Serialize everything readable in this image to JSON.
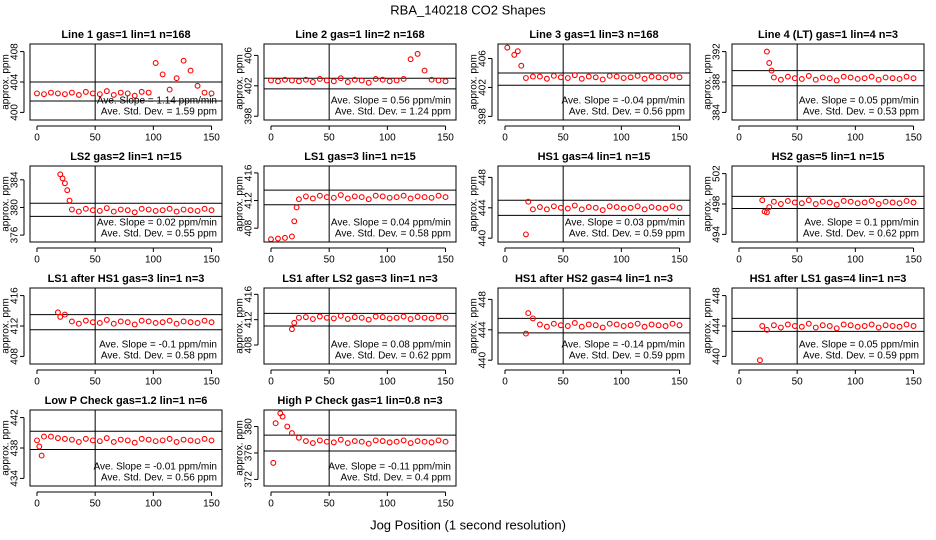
{
  "title": "RBA_140218  CO2 Shapes",
  "x_label": "Jog Position (1 second resolution)",
  "chart_data": [
    {
      "type": "scatter",
      "title": "Line 1 gas=1 lin=1 n=168",
      "y_label": "approx. ppm",
      "color": "#ff0000",
      "annotations": [
        "Ave. Slope = 1.14 ppm/min",
        "Ave. Std. Dev. = 1.59 ppm"
      ],
      "xlim": [
        -6,
        159
      ],
      "xticks": [
        0,
        50,
        100,
        150
      ],
      "ylim": [
        399,
        409
      ],
      "yticks": [
        400,
        404,
        408
      ],
      "vlines": [
        50
      ],
      "hlines": [
        404,
        401.5
      ],
      "x": [
        0,
        6,
        12,
        18,
        24,
        30,
        36,
        42,
        48,
        54,
        60,
        66,
        72,
        78,
        84,
        90,
        96,
        102,
        108,
        114,
        120,
        126,
        132,
        138,
        144,
        150
      ],
      "values": [
        402.5,
        402.4,
        402.6,
        402.5,
        402.4,
        402.6,
        402.3,
        402.7,
        402.5,
        402.4,
        402.8,
        402.3,
        402.6,
        402.5,
        402.2,
        402.7,
        402.6,
        406.5,
        405,
        403,
        404.5,
        406.8,
        405.5,
        403.5,
        402.6,
        402.5
      ]
    },
    {
      "type": "scatter",
      "title": "Line 2 gas=1 lin=2 n=168",
      "y_label": "approx. ppm",
      "color": "#ff0000",
      "annotations": [
        "Ave. Slope = 0.56 ppm/min",
        "Ave. Std. Dev. = 1.24 ppm"
      ],
      "xlim": [
        -6,
        159
      ],
      "xticks": [
        0,
        50,
        100,
        150
      ],
      "ylim": [
        397.5,
        407.5
      ],
      "yticks": [
        398,
        402,
        406
      ],
      "vlines": [
        50
      ],
      "hlines": [
        403,
        401.6
      ],
      "x": [
        0,
        6,
        12,
        18,
        24,
        30,
        36,
        42,
        48,
        54,
        60,
        66,
        72,
        78,
        84,
        90,
        96,
        102,
        108,
        114,
        120,
        126,
        132,
        138,
        144,
        150
      ],
      "values": [
        402.7,
        402.6,
        402.8,
        402.7,
        402.6,
        402.8,
        402.5,
        402.9,
        402.7,
        402.6,
        403,
        402.5,
        402.8,
        402.7,
        402.4,
        402.9,
        402.8,
        402.6,
        402.7,
        402.9,
        405.5,
        406.2,
        404,
        402.8,
        402.7,
        402.6
      ]
    },
    {
      "type": "scatter",
      "title": "Line 3 gas=1 lin=3 n=168",
      "y_label": "approx. ppm",
      "color": "#ff0000",
      "annotations": [
        "Ave. Slope = -0.04 ppm/min",
        "Ave. Std. Dev. = 0.56 ppm"
      ],
      "xlim": [
        -6,
        159
      ],
      "xticks": [
        0,
        50,
        100,
        150
      ],
      "ylim": [
        397.5,
        408
      ],
      "yticks": [
        398,
        402,
        406
      ],
      "vlines": [
        50
      ],
      "hlines": [
        404,
        402.3
      ],
      "x": [
        2,
        8,
        11,
        14,
        18,
        24,
        30,
        36,
        42,
        48,
        54,
        60,
        66,
        72,
        78,
        84,
        90,
        96,
        102,
        108,
        114,
        120,
        126,
        132,
        138,
        144,
        150
      ],
      "values": [
        407.5,
        406.5,
        407,
        405,
        403.3,
        403.5,
        403.5,
        403.2,
        403.6,
        403.4,
        403.3,
        403.7,
        403.2,
        403.5,
        403.4,
        403.1,
        403.6,
        403.5,
        403.3,
        403.4,
        403.6,
        403.2,
        403.5,
        403.4,
        403.3,
        403.6,
        403.4
      ]
    },
    {
      "type": "scatter",
      "title": "Line 4 (LT) gas=1 lin=4 n=3",
      "y_label": "approx. ppm",
      "color": "#ff0000",
      "annotations": [
        "Ave. Slope = 0.05 ppm/min",
        "Ave. Std. Dev. = 0.53 ppm"
      ],
      "xlim": [
        -6,
        159
      ],
      "xticks": [
        0,
        50,
        100,
        150
      ],
      "ylim": [
        383,
        393
      ],
      "yticks": [
        384,
        388,
        392
      ],
      "vlines": [
        50
      ],
      "hlines": [
        389.5,
        387.5
      ],
      "x": [
        24,
        26,
        28,
        30,
        36,
        42,
        48,
        54,
        60,
        66,
        72,
        78,
        84,
        90,
        96,
        102,
        108,
        114,
        120,
        126,
        132,
        138,
        144,
        150
      ],
      "values": [
        392,
        390.5,
        389.5,
        388.6,
        388.3,
        388.7,
        388.5,
        388.4,
        388.8,
        388.3,
        388.6,
        388.5,
        388.2,
        388.7,
        388.6,
        388.4,
        388.5,
        388.7,
        388.3,
        388.6,
        388.5,
        388.4,
        388.7,
        388.5
      ]
    },
    {
      "type": "scatter",
      "title": "LS2 gas=2 lin=1 n=15",
      "y_label": "approx. ppm",
      "color": "#ff0000",
      "annotations": [
        "Ave. Slope = 0.02 ppm/min",
        "Ave. Std. Dev. = 0.55 ppm"
      ],
      "xlim": [
        -6,
        159
      ],
      "xticks": [
        0,
        50,
        100,
        150
      ],
      "ylim": [
        375,
        386
      ],
      "yticks": [
        376,
        380,
        384
      ],
      "vlines": [
        50
      ],
      "hlines": [
        380.6,
        378.7
      ],
      "x": [
        20,
        22,
        24,
        26,
        28,
        30,
        36,
        42,
        48,
        54,
        60,
        66,
        72,
        78,
        84,
        90,
        96,
        102,
        108,
        114,
        120,
        126,
        132,
        138,
        144,
        150
      ],
      "values": [
        384.8,
        384.2,
        383.5,
        382.5,
        381,
        379.7,
        379.4,
        379.8,
        379.6,
        379.5,
        379.9,
        379.4,
        379.7,
        379.6,
        379.3,
        379.8,
        379.7,
        379.5,
        379.6,
        379.8,
        379.4,
        379.7,
        379.6,
        379.5,
        379.8,
        379.6
      ]
    },
    {
      "type": "scatter",
      "title": "LS1 gas=3 lin=1 n=15",
      "y_label": "approx. ppm",
      "color": "#ff0000",
      "annotations": [
        "Ave. Slope = 0.04 ppm/min",
        "Ave. Std. Dev. = 0.58 ppm"
      ],
      "xlim": [
        -6,
        159
      ],
      "xticks": [
        0,
        50,
        100,
        150
      ],
      "ylim": [
        406,
        417
      ],
      "yticks": [
        408,
        412,
        416
      ],
      "vlines": [
        50
      ],
      "hlines": [
        413.5,
        411.4
      ],
      "x": [
        0,
        6,
        12,
        18,
        20,
        22,
        24,
        30,
        36,
        42,
        48,
        54,
        60,
        66,
        72,
        78,
        84,
        90,
        96,
        102,
        108,
        114,
        120,
        126,
        132,
        138,
        144,
        150
      ],
      "values": [
        406.4,
        406.5,
        406.6,
        406.8,
        409,
        411,
        412.2,
        412.6,
        412.3,
        412.7,
        412.5,
        412.4,
        412.8,
        412.3,
        412.6,
        412.5,
        412.2,
        412.7,
        412.6,
        412.4,
        412.5,
        412.7,
        412.3,
        412.6,
        412.5,
        412.4,
        412.7,
        412.5
      ]
    },
    {
      "type": "scatter",
      "title": "HS1 gas=4 lin=1 n=15",
      "y_label": "approx. ppm",
      "color": "#ff0000",
      "annotations": [
        "Ave. Slope = 0.03 ppm/min",
        "Ave. Std. Dev. = 0.59 ppm"
      ],
      "xlim": [
        -6,
        159
      ],
      "xticks": [
        0,
        50,
        100,
        150
      ],
      "ylim": [
        439.5,
        449.5
      ],
      "yticks": [
        440,
        444,
        448
      ],
      "vlines": [
        50
      ],
      "hlines": [
        445,
        443
      ],
      "x": [
        18,
        20,
        24,
        30,
        36,
        42,
        48,
        54,
        60,
        66,
        72,
        78,
        84,
        90,
        96,
        102,
        108,
        114,
        120,
        126,
        132,
        138,
        144,
        150
      ],
      "values": [
        440.5,
        444.8,
        443.8,
        444.1,
        443.8,
        444.2,
        444,
        443.9,
        444.3,
        443.8,
        444.1,
        444,
        443.7,
        444.2,
        444.1,
        443.9,
        444,
        444.2,
        443.8,
        444.1,
        444,
        443.9,
        444.2,
        444
      ]
    },
    {
      "type": "scatter",
      "title": "HS2 gas=5 lin=1 n=15",
      "y_label": "approx. ppm",
      "color": "#ff0000",
      "annotations": [
        "Ave. Slope = 0.1 ppm/min",
        "Ave. Std. Dev. = 0.62 ppm"
      ],
      "xlim": [
        -6,
        159
      ],
      "xticks": [
        0,
        50,
        100,
        150
      ],
      "ylim": [
        493,
        503
      ],
      "yticks": [
        494,
        498,
        502
      ],
      "vlines": [
        50
      ],
      "hlines": [
        499,
        497.4
      ],
      "x": [
        20,
        22,
        24,
        26,
        30,
        36,
        42,
        48,
        54,
        60,
        66,
        72,
        78,
        84,
        90,
        96,
        102,
        108,
        114,
        120,
        126,
        132,
        138,
        144,
        150
      ],
      "values": [
        498.5,
        497,
        496.9,
        497.6,
        498.3,
        498,
        498.4,
        498.2,
        498.1,
        498.5,
        498,
        498.3,
        498.2,
        497.9,
        498.4,
        498.3,
        498.1,
        498.2,
        498.4,
        498,
        498.3,
        498.2,
        498.1,
        498.4,
        498.2
      ]
    },
    {
      "type": "scatter",
      "title": "LS1 after HS1 gas=3 lin=1 n=3",
      "y_label": "approx. ppm",
      "color": "#ff0000",
      "annotations": [
        "Ave. Slope = -0.1 ppm/min",
        "Ave. Std. Dev. = 0.58 ppm"
      ],
      "xlim": [
        -6,
        159
      ],
      "xticks": [
        0,
        50,
        100,
        150
      ],
      "ylim": [
        407,
        417
      ],
      "yticks": [
        408,
        412,
        416
      ],
      "vlines": [
        50
      ],
      "hlines": [
        413.5,
        411.5
      ],
      "x": [
        18,
        20,
        24,
        30,
        36,
        42,
        48,
        54,
        60,
        66,
        72,
        78,
        84,
        90,
        96,
        102,
        108,
        114,
        120,
        126,
        132,
        138,
        144,
        150
      ],
      "values": [
        413.8,
        413.2,
        413.5,
        412.6,
        412.3,
        412.7,
        412.5,
        412.4,
        412.8,
        412.3,
        412.6,
        412.5,
        412.2,
        412.7,
        412.6,
        412.4,
        412.5,
        412.7,
        412.3,
        412.6,
        412.5,
        412.4,
        412.7,
        412.5
      ]
    },
    {
      "type": "scatter",
      "title": "LS1 after LS2 gas=3 lin=1 n=3",
      "y_label": "approx. ppm",
      "color": "#ff0000",
      "annotations": [
        "Ave. Slope = 0.08 ppm/min",
        "Ave. Std. Dev. = 0.62 ppm"
      ],
      "xlim": [
        -6,
        159
      ],
      "xticks": [
        0,
        50,
        100,
        150
      ],
      "ylim": [
        405,
        417
      ],
      "yticks": [
        408,
        412,
        416
      ],
      "vlines": [
        50
      ],
      "hlines": [
        413,
        411
      ],
      "x": [
        18,
        20,
        24,
        30,
        36,
        42,
        48,
        54,
        60,
        66,
        72,
        78,
        84,
        90,
        96,
        102,
        108,
        114,
        120,
        126,
        132,
        138,
        144,
        150
      ],
      "values": [
        410.5,
        411.5,
        412.3,
        412.4,
        412.1,
        412.5,
        412.3,
        412.2,
        412.6,
        412.1,
        412.4,
        412.3,
        412,
        412.5,
        412.4,
        412.2,
        412.3,
        412.5,
        412.1,
        412.4,
        412.3,
        412.2,
        412.5,
        412.3
      ]
    },
    {
      "type": "scatter",
      "title": "HS1 after HS2 gas=4 lin=1 n=3",
      "y_label": "approx. ppm",
      "color": "#ff0000",
      "annotations": [
        "Ave. Slope = -0.14 ppm/min",
        "Ave. Std. Dev. = 0.59 ppm"
      ],
      "xlim": [
        -6,
        159
      ],
      "xticks": [
        0,
        50,
        100,
        150
      ],
      "ylim": [
        439.5,
        449.5
      ],
      "yticks": [
        440,
        444,
        448
      ],
      "vlines": [
        50
      ],
      "hlines": [
        445.5,
        443.6
      ],
      "x": [
        18,
        20,
        24,
        30,
        36,
        42,
        48,
        54,
        60,
        66,
        72,
        78,
        84,
        90,
        96,
        102,
        108,
        114,
        120,
        126,
        132,
        138,
        144,
        150
      ],
      "values": [
        443.5,
        446.2,
        445.5,
        444.7,
        444.4,
        444.8,
        444.6,
        444.5,
        444.9,
        444.4,
        444.7,
        444.6,
        444.3,
        444.8,
        444.7,
        444.5,
        444.6,
        444.8,
        444.4,
        444.7,
        444.6,
        444.5,
        444.8,
        444.6
      ]
    },
    {
      "type": "scatter",
      "title": "HS1 after LS1 gas=4 lin=1 n=3",
      "y_label": "approx. ppm",
      "color": "#ff0000",
      "annotations": [
        "Ave. Slope = 0.05 ppm/min",
        "Ave. Std. Dev. = 0.59 ppm"
      ],
      "xlim": [
        -6,
        159
      ],
      "xticks": [
        0,
        50,
        100,
        150
      ],
      "ylim": [
        439,
        449
      ],
      "yticks": [
        440,
        444,
        448
      ],
      "vlines": [
        50
      ],
      "hlines": [
        445,
        443.3
      ],
      "x": [
        18,
        20,
        24,
        30,
        36,
        42,
        48,
        54,
        60,
        66,
        72,
        78,
        84,
        90,
        96,
        102,
        108,
        114,
        120,
        126,
        132,
        138,
        144,
        150
      ],
      "values": [
        439.5,
        444,
        443.5,
        444.1,
        443.8,
        444.2,
        444,
        443.9,
        444.3,
        443.8,
        444.1,
        444,
        443.7,
        444.2,
        444.1,
        443.9,
        444,
        444.2,
        443.8,
        444.1,
        444,
        443.9,
        444.2,
        444
      ]
    },
    {
      "type": "scatter",
      "title": "Low P Check gas=1.2 lin=1 n=6",
      "y_label": "approx. ppm",
      "color": "#ff0000",
      "annotations": [
        "Ave. Slope = -0.01 ppm/min",
        "Ave. Std. Dev. = 0.56 ppm"
      ],
      "xlim": [
        -6,
        159
      ],
      "xticks": [
        0,
        50,
        100,
        150
      ],
      "ylim": [
        433,
        443
      ],
      "yticks": [
        434,
        438,
        442
      ],
      "vlines": [
        50
      ],
      "hlines": [
        440.2,
        437.8
      ],
      "x": [
        0,
        2,
        4,
        6,
        12,
        18,
        24,
        30,
        36,
        42,
        48,
        54,
        60,
        66,
        72,
        78,
        84,
        90,
        96,
        102,
        108,
        114,
        120,
        126,
        132,
        138,
        144,
        150
      ],
      "values": [
        439,
        438.2,
        437,
        439.5,
        439.5,
        439.3,
        439.2,
        439.1,
        438.8,
        439.2,
        439,
        438.9,
        439.3,
        438.8,
        439.1,
        439,
        438.7,
        439.2,
        439.1,
        438.9,
        439,
        439.2,
        438.8,
        439.1,
        439,
        438.9,
        439.2,
        439
      ]
    },
    {
      "type": "scatter",
      "title": "High P Check gas=1 lin=0.8 n=3",
      "y_label": "approx. ppm",
      "color": "#ff0000",
      "annotations": [
        "Ave. Slope = -0.11 ppm/min",
        "Ave. Std. Dev. = 0.4 ppm"
      ],
      "xlim": [
        -6,
        159
      ],
      "xticks": [
        0,
        50,
        100,
        150
      ],
      "ylim": [
        371,
        382.5
      ],
      "yticks": [
        372,
        376,
        380
      ],
      "vlines": [
        50
      ],
      "hlines": [
        378.7,
        376.3
      ],
      "x": [
        2,
        4,
        8,
        10,
        14,
        18,
        24,
        30,
        36,
        42,
        48,
        54,
        60,
        66,
        72,
        78,
        84,
        90,
        96,
        102,
        108,
        114,
        120,
        126,
        132,
        138,
        144,
        150
      ],
      "values": [
        374.5,
        380.5,
        382,
        381.5,
        380,
        379,
        378.3,
        377.8,
        377.5,
        377.9,
        377.7,
        377.6,
        378,
        377.5,
        377.8,
        377.7,
        377.4,
        377.9,
        377.8,
        377.6,
        377.7,
        377.9,
        377.5,
        377.8,
        377.7,
        377.6,
        377.9,
        377.7
      ]
    }
  ]
}
